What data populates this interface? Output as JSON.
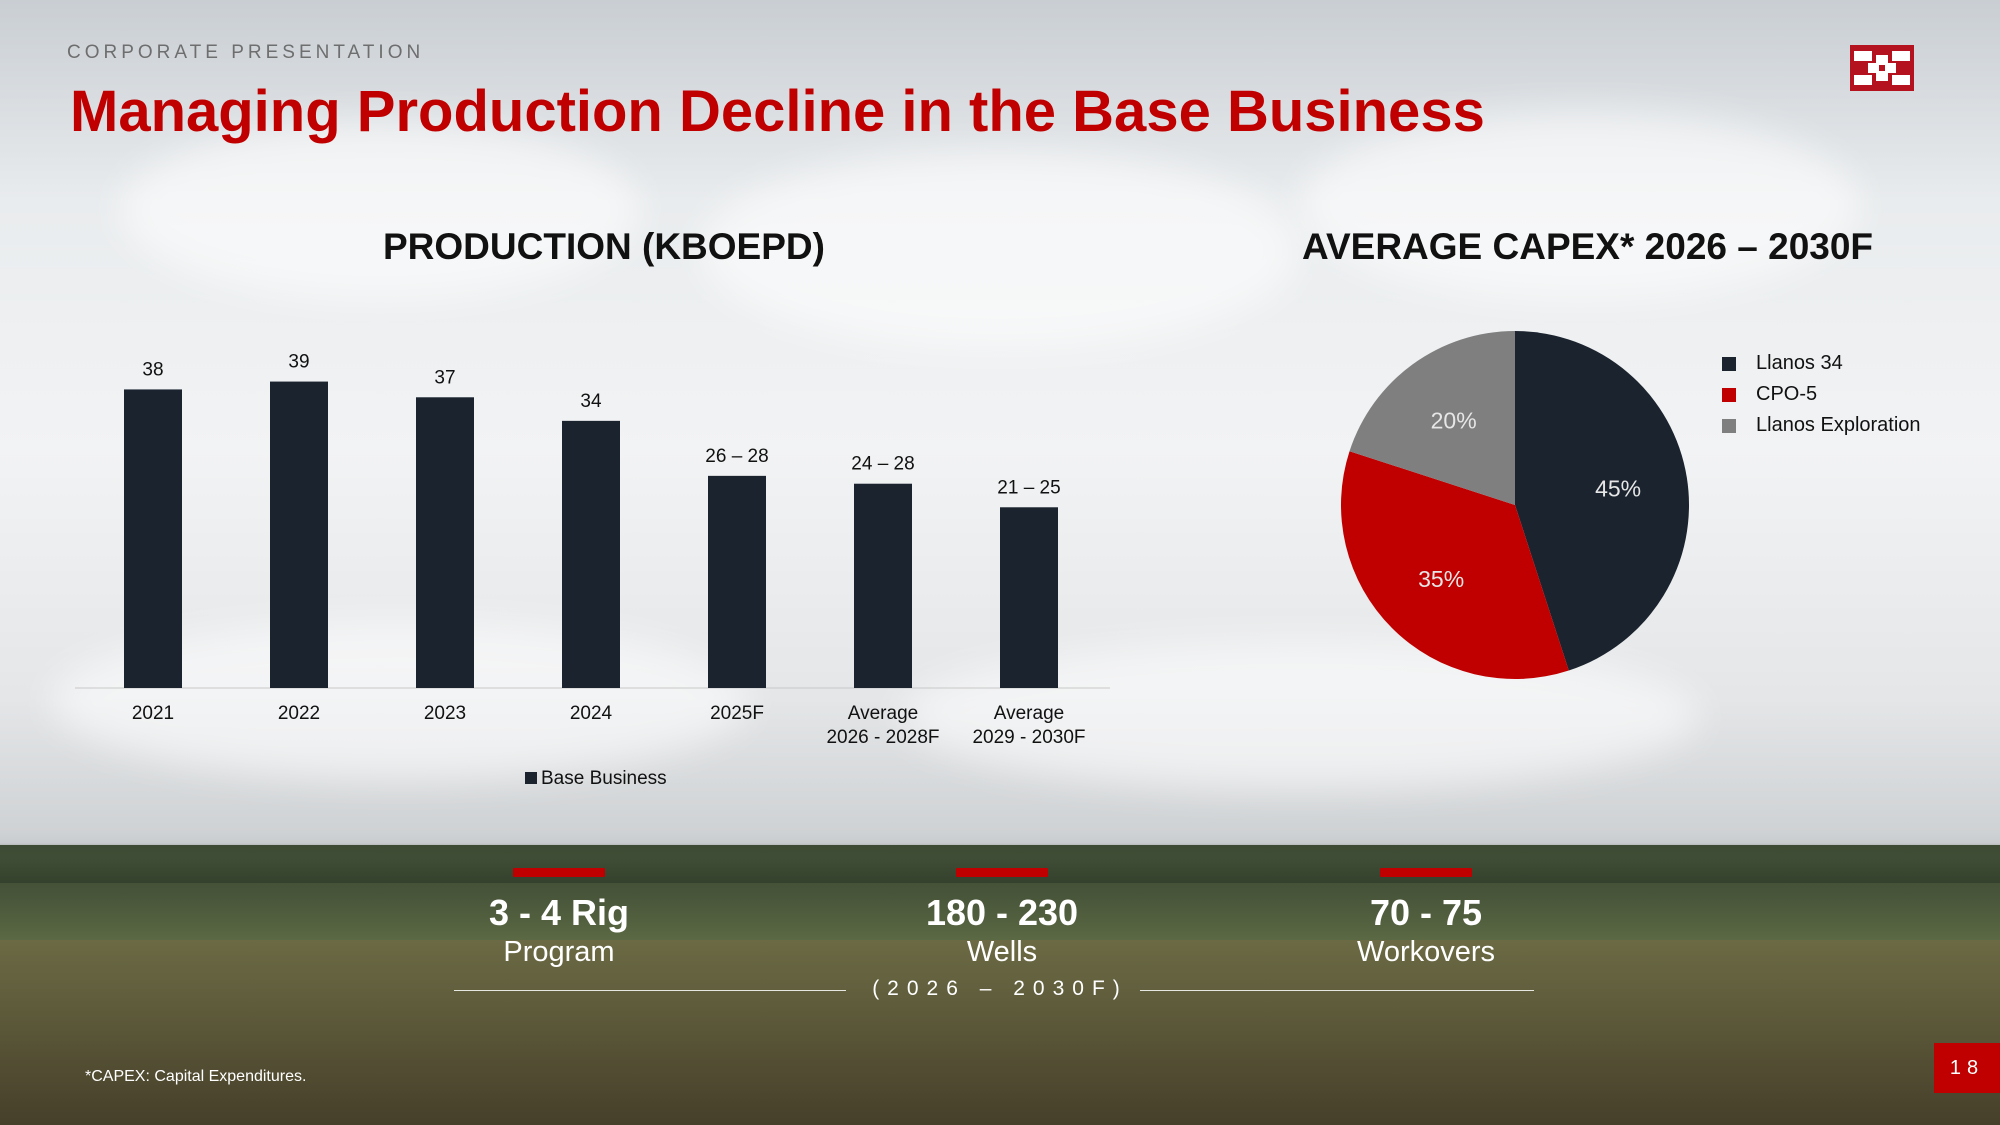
{
  "header": {
    "label": "CORPORATE PRESENTATION"
  },
  "title": "Managing Production Decline in the Base Business",
  "colors": {
    "accent": "#c00000",
    "navy": "#1a232e",
    "gray": "#7f7f7f"
  },
  "chart_data": [
    {
      "type": "bar",
      "title": "PRODUCTION (KBOEPD)",
      "categories": [
        [
          "2021"
        ],
        [
          "2022"
        ],
        [
          "2023"
        ],
        [
          "2024"
        ],
        [
          "2025F"
        ],
        [
          "Average",
          "2026 - 2028F"
        ],
        [
          "Average",
          "2029 - 2030F"
        ]
      ],
      "series": [
        {
          "name": "Base Business",
          "values": [
            38,
            39,
            37,
            34,
            27,
            26,
            23
          ]
        }
      ],
      "data_labels": [
        "38",
        "39",
        "37",
        "34",
        "26 – 28",
        "24 – 28",
        "21 – 25"
      ],
      "ylim": [
        0,
        42
      ],
      "legend": "bottom-center",
      "xlabel": "",
      "ylabel": ""
    },
    {
      "type": "pie",
      "title": "AVERAGE CAPEX* 2026 – 2030F",
      "labels": [
        "Llanos 34",
        "CPO-5",
        "Llanos Exploration"
      ],
      "values": [
        45,
        35,
        20
      ],
      "value_labels": [
        "45%",
        "35%",
        "20%"
      ],
      "colors": [
        "#1a232e",
        "#c00000",
        "#7f7f7f"
      ],
      "legend": "right"
    }
  ],
  "stats": [
    {
      "value": "3 - 4 Rig",
      "label": "Program"
    },
    {
      "value": "180 - 230",
      "label": "Wells"
    },
    {
      "value": "70 - 75",
      "label": "Workovers"
    }
  ],
  "period": "(2026 – 2030F)",
  "footnote": "*CAPEX: Capital Expenditures.",
  "page_number": "18"
}
